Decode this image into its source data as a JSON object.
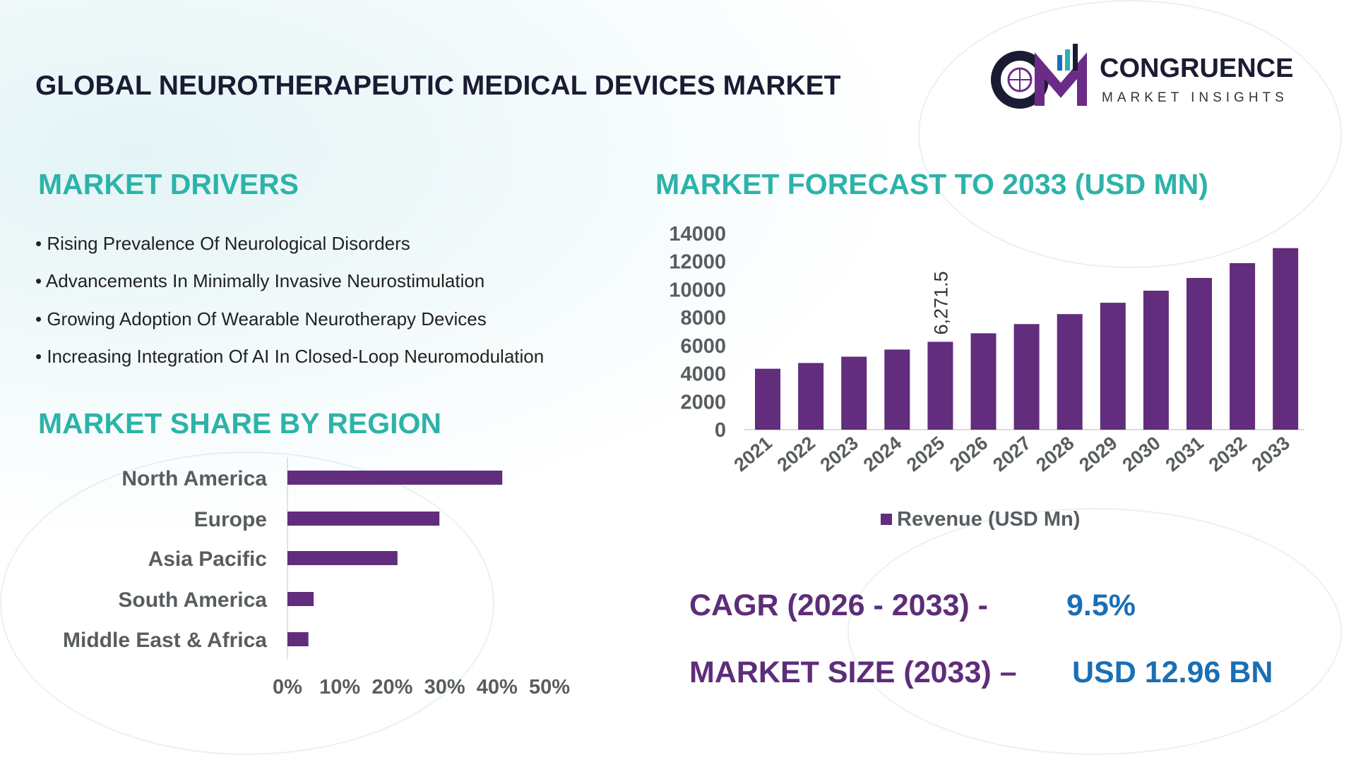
{
  "header": {
    "title": "GLOBAL NEUROTHERAPEUTIC MEDICAL DEVICES MARKET",
    "logo": {
      "name": "CONGRUENCE",
      "tagline": "MARKET INSIGHTS",
      "mark": "CM"
    }
  },
  "drivers": {
    "heading": "MARKET DRIVERS",
    "items": [
      "• Rising Prevalence Of Neurological Disorders",
      "• Advancements In Minimally Invasive Neurostimulation",
      "• Growing Adoption Of Wearable Neurotherapy Devices",
      "• Increasing Integration Of AI In Closed-Loop Neuromodulation"
    ]
  },
  "region": {
    "heading": "MARKET SHARE BY REGION"
  },
  "forecast": {
    "heading": "MARKET FORECAST TO 2033 (USD MN)"
  },
  "stats": {
    "cagr_label": "CAGR (2026 - 2033) -",
    "cagr_value": "9.5%",
    "size_label": "MARKET SIZE (2033) –",
    "size_value": "USD 12.96 BN"
  },
  "colors": {
    "bar": "#612d7c",
    "heading": "#2db3a9",
    "stat_label": "#5e2d79",
    "stat_value": "#1a6fb5"
  },
  "chart_data": [
    {
      "type": "bar",
      "orientation": "vertical",
      "categories": [
        "2021",
        "2022",
        "2023",
        "2024",
        "2025",
        "2026",
        "2027",
        "2028",
        "2029",
        "2030",
        "2031",
        "2032",
        "2033"
      ],
      "series": [
        {
          "name": "Revenue (USD Mn)",
          "values": [
            4350,
            4760,
            5210,
            5720,
            6271.5,
            6880,
            7540,
            8250,
            9060,
            9920,
            10830,
            11890,
            12960
          ]
        }
      ],
      "data_labels": [
        {
          "category": "2025",
          "text": "6,271.5"
        }
      ],
      "yticks": [
        "0",
        "2000",
        "4000",
        "6000",
        "8000",
        "10000",
        "12000",
        "14000"
      ],
      "ylim": [
        0,
        14000
      ],
      "legend": "bottom",
      "grid": false
    },
    {
      "type": "bar",
      "orientation": "horizontal",
      "categories": [
        "North America",
        "Europe",
        "Asia Pacific",
        "South America",
        "Middle East & Africa"
      ],
      "values": [
        41,
        29,
        21,
        5,
        4
      ],
      "unit": "%",
      "xticks": [
        "0%",
        "10%",
        "20%",
        "30%",
        "40%",
        "50%"
      ],
      "xlim": [
        0,
        50
      ],
      "grid": false
    }
  ]
}
